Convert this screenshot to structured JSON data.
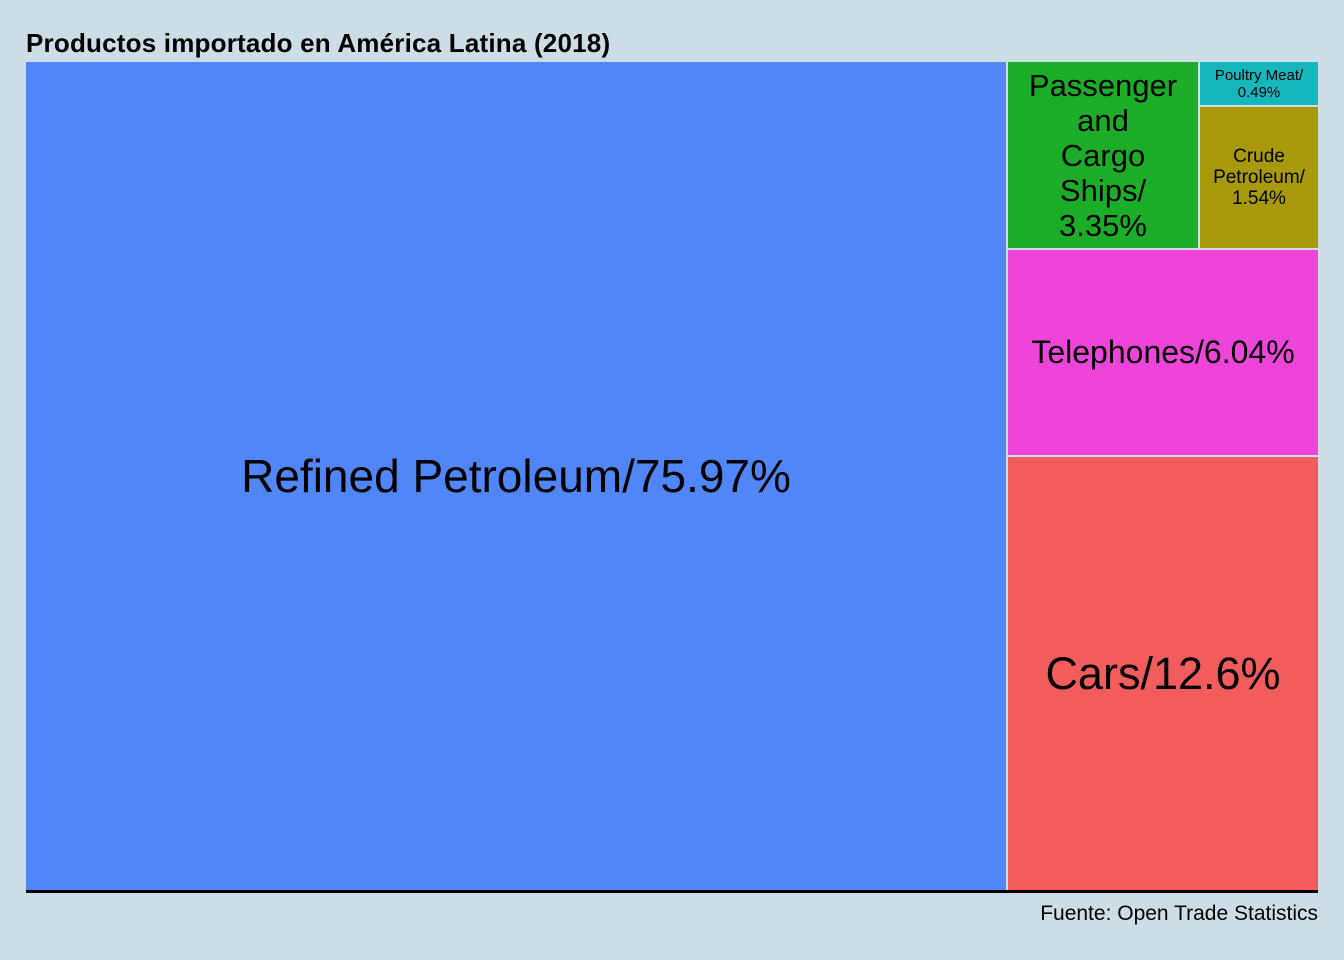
{
  "chart_data": {
    "type": "treemap",
    "title": "Productos importado en América Latina (2018)",
    "source": "Fuente: Open Trade Statistics",
    "background_color": "#ccdde6",
    "value_format": "label/percent",
    "legend": "none",
    "nodes": [
      {
        "label": "Refined Petroleum",
        "percent": 75.97,
        "color": "#5186f8",
        "display_lines": [
          "Refined Petroleum/75.97%"
        ]
      },
      {
        "label": "Cars",
        "percent": 12.6,
        "color": "#f25c5c",
        "display_lines": [
          "Cars/12.6%"
        ]
      },
      {
        "label": "Telephones",
        "percent": 6.04,
        "color": "#ee44da",
        "display_lines": [
          "Telephones/6.04%"
        ]
      },
      {
        "label": "Passenger and Cargo Ships",
        "percent": 3.35,
        "color": "#1cad28",
        "display_lines": [
          "Passenger",
          "and",
          "Cargo",
          "Ships/",
          "3.35%"
        ]
      },
      {
        "label": "Crude Petroleum",
        "percent": 1.54,
        "color": "#a8990a",
        "display_lines": [
          "Crude",
          "Petroleum/",
          "1.54%"
        ]
      },
      {
        "label": "Poultry Meat",
        "percent": 0.49,
        "color": "#15b7bc",
        "display_lines": [
          "Poultry Meat/",
          "0.49%"
        ]
      }
    ]
  }
}
